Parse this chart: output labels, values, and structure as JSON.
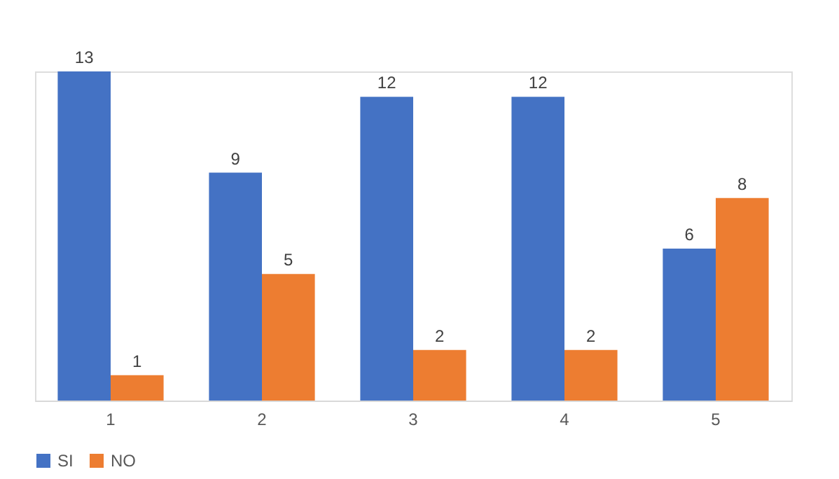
{
  "chart_data": {
    "type": "bar",
    "categories": [
      "1",
      "2",
      "3",
      "4",
      "5"
    ],
    "series": [
      {
        "name": "SI",
        "color": "#4472c4",
        "values": [
          13,
          9,
          12,
          12,
          6
        ]
      },
      {
        "name": "NO",
        "color": "#ed7d31",
        "values": [
          1,
          5,
          2,
          2,
          8
        ]
      }
    ],
    "data_labels": true,
    "legend": "bottom",
    "grid": false
  }
}
